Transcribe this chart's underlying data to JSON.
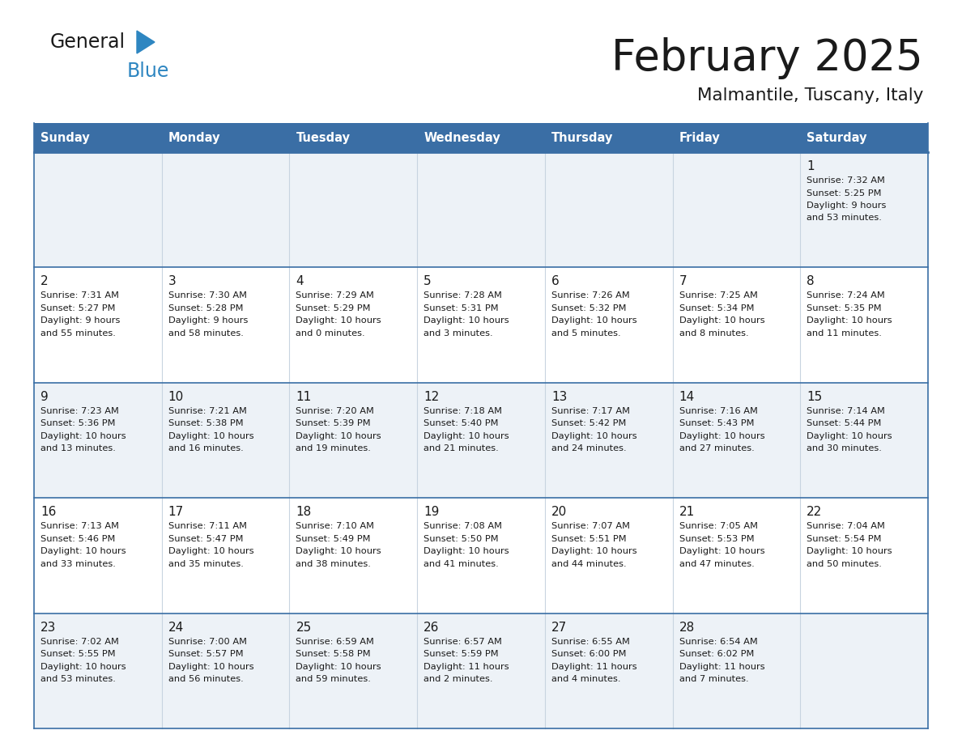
{
  "title": "February 2025",
  "subtitle": "Malmantile, Tuscany, Italy",
  "header_color": "#3a6ea5",
  "header_text_color": "#ffffff",
  "cell_bg_light": "#edf2f7",
  "cell_bg_white": "#ffffff",
  "border_color": "#3a6ea5",
  "text_color": "#1a1a1a",
  "days_of_week": [
    "Sunday",
    "Monday",
    "Tuesday",
    "Wednesday",
    "Thursday",
    "Friday",
    "Saturday"
  ],
  "weeks": [
    [
      {
        "day": "",
        "info": ""
      },
      {
        "day": "",
        "info": ""
      },
      {
        "day": "",
        "info": ""
      },
      {
        "day": "",
        "info": ""
      },
      {
        "day": "",
        "info": ""
      },
      {
        "day": "",
        "info": ""
      },
      {
        "day": "1",
        "info": "Sunrise: 7:32 AM\nSunset: 5:25 PM\nDaylight: 9 hours\nand 53 minutes."
      }
    ],
    [
      {
        "day": "2",
        "info": "Sunrise: 7:31 AM\nSunset: 5:27 PM\nDaylight: 9 hours\nand 55 minutes."
      },
      {
        "day": "3",
        "info": "Sunrise: 7:30 AM\nSunset: 5:28 PM\nDaylight: 9 hours\nand 58 minutes."
      },
      {
        "day": "4",
        "info": "Sunrise: 7:29 AM\nSunset: 5:29 PM\nDaylight: 10 hours\nand 0 minutes."
      },
      {
        "day": "5",
        "info": "Sunrise: 7:28 AM\nSunset: 5:31 PM\nDaylight: 10 hours\nand 3 minutes."
      },
      {
        "day": "6",
        "info": "Sunrise: 7:26 AM\nSunset: 5:32 PM\nDaylight: 10 hours\nand 5 minutes."
      },
      {
        "day": "7",
        "info": "Sunrise: 7:25 AM\nSunset: 5:34 PM\nDaylight: 10 hours\nand 8 minutes."
      },
      {
        "day": "8",
        "info": "Sunrise: 7:24 AM\nSunset: 5:35 PM\nDaylight: 10 hours\nand 11 minutes."
      }
    ],
    [
      {
        "day": "9",
        "info": "Sunrise: 7:23 AM\nSunset: 5:36 PM\nDaylight: 10 hours\nand 13 minutes."
      },
      {
        "day": "10",
        "info": "Sunrise: 7:21 AM\nSunset: 5:38 PM\nDaylight: 10 hours\nand 16 minutes."
      },
      {
        "day": "11",
        "info": "Sunrise: 7:20 AM\nSunset: 5:39 PM\nDaylight: 10 hours\nand 19 minutes."
      },
      {
        "day": "12",
        "info": "Sunrise: 7:18 AM\nSunset: 5:40 PM\nDaylight: 10 hours\nand 21 minutes."
      },
      {
        "day": "13",
        "info": "Sunrise: 7:17 AM\nSunset: 5:42 PM\nDaylight: 10 hours\nand 24 minutes."
      },
      {
        "day": "14",
        "info": "Sunrise: 7:16 AM\nSunset: 5:43 PM\nDaylight: 10 hours\nand 27 minutes."
      },
      {
        "day": "15",
        "info": "Sunrise: 7:14 AM\nSunset: 5:44 PM\nDaylight: 10 hours\nand 30 minutes."
      }
    ],
    [
      {
        "day": "16",
        "info": "Sunrise: 7:13 AM\nSunset: 5:46 PM\nDaylight: 10 hours\nand 33 minutes."
      },
      {
        "day": "17",
        "info": "Sunrise: 7:11 AM\nSunset: 5:47 PM\nDaylight: 10 hours\nand 35 minutes."
      },
      {
        "day": "18",
        "info": "Sunrise: 7:10 AM\nSunset: 5:49 PM\nDaylight: 10 hours\nand 38 minutes."
      },
      {
        "day": "19",
        "info": "Sunrise: 7:08 AM\nSunset: 5:50 PM\nDaylight: 10 hours\nand 41 minutes."
      },
      {
        "day": "20",
        "info": "Sunrise: 7:07 AM\nSunset: 5:51 PM\nDaylight: 10 hours\nand 44 minutes."
      },
      {
        "day": "21",
        "info": "Sunrise: 7:05 AM\nSunset: 5:53 PM\nDaylight: 10 hours\nand 47 minutes."
      },
      {
        "day": "22",
        "info": "Sunrise: 7:04 AM\nSunset: 5:54 PM\nDaylight: 10 hours\nand 50 minutes."
      }
    ],
    [
      {
        "day": "23",
        "info": "Sunrise: 7:02 AM\nSunset: 5:55 PM\nDaylight: 10 hours\nand 53 minutes."
      },
      {
        "day": "24",
        "info": "Sunrise: 7:00 AM\nSunset: 5:57 PM\nDaylight: 10 hours\nand 56 minutes."
      },
      {
        "day": "25",
        "info": "Sunrise: 6:59 AM\nSunset: 5:58 PM\nDaylight: 10 hours\nand 59 minutes."
      },
      {
        "day": "26",
        "info": "Sunrise: 6:57 AM\nSunset: 5:59 PM\nDaylight: 11 hours\nand 2 minutes."
      },
      {
        "day": "27",
        "info": "Sunrise: 6:55 AM\nSunset: 6:00 PM\nDaylight: 11 hours\nand 4 minutes."
      },
      {
        "day": "28",
        "info": "Sunrise: 6:54 AM\nSunset: 6:02 PM\nDaylight: 11 hours\nand 7 minutes."
      },
      {
        "day": "",
        "info": ""
      }
    ]
  ]
}
